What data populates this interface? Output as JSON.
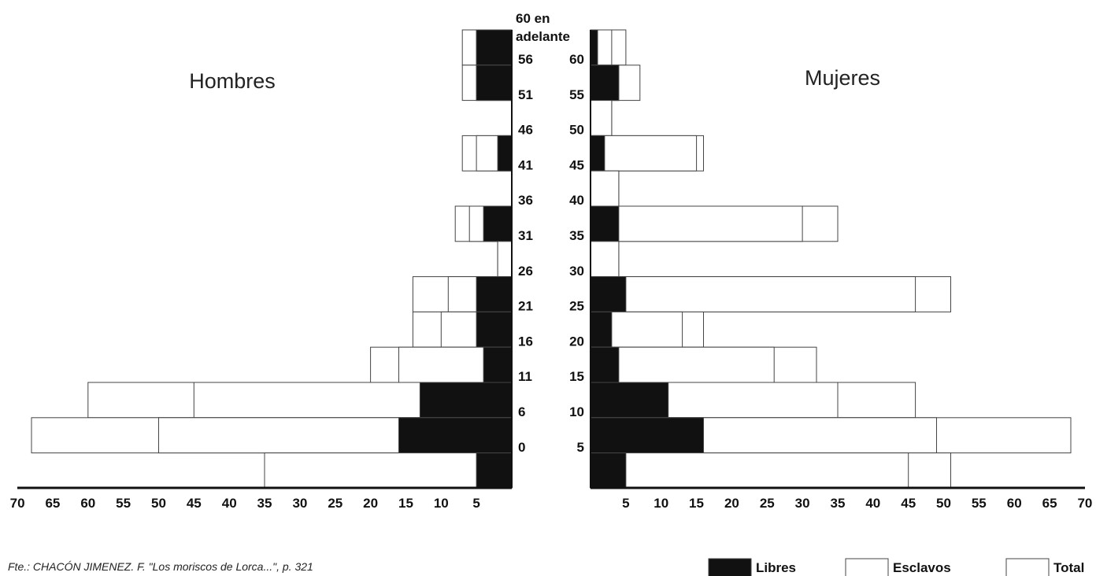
{
  "chart_data": {
    "type": "bar",
    "subtype": "population-pyramid",
    "colors": {
      "libres": "#111111",
      "esclavos": "#ffffff",
      "total": "#ffffff",
      "outline": "#444444"
    },
    "left_panel": {
      "title": "Hombres",
      "age_labels": [
        "60 en adelante",
        "56",
        "51",
        "46",
        "41",
        "36",
        "31",
        "26",
        "21",
        "16",
        "11",
        "6",
        "0"
      ],
      "rows": [
        {
          "libres": 5,
          "esclavos": 5,
          "total": 7
        },
        {
          "libres": 5,
          "esclavos": 5,
          "total": 7
        },
        {
          "libres": 0,
          "esclavos": 0,
          "total": 0
        },
        {
          "libres": 2,
          "esclavos": 5,
          "total": 7
        },
        {
          "libres": 0,
          "esclavos": 0,
          "total": 0
        },
        {
          "libres": 4,
          "esclavos": 6,
          "total": 8
        },
        {
          "libres": 0,
          "esclavos": 2,
          "total": 2
        },
        {
          "libres": 5,
          "esclavos": 9,
          "total": 14
        },
        {
          "libres": 5,
          "esclavos": 10,
          "total": 14
        },
        {
          "libres": 4,
          "esclavos": 16,
          "total": 20
        },
        {
          "libres": 13,
          "esclavos": 45,
          "total": 60
        },
        {
          "libres": 16,
          "esclavos": 50,
          "total": 68
        },
        {
          "libres": 5,
          "esclavos": 35,
          "total": 35
        }
      ],
      "xticks": [
        "70",
        "65",
        "60",
        "55",
        "50",
        "45",
        "40",
        "35",
        "30",
        "25",
        "20",
        "15",
        "10",
        "5"
      ]
    },
    "right_panel": {
      "title": "Mujeres",
      "age_labels": [
        "60",
        "55",
        "50",
        "45",
        "40",
        "35",
        "30",
        "25",
        "20",
        "15",
        "10",
        "5"
      ],
      "rows": [
        {
          "libres": 1,
          "esclavos": 3,
          "total": 5
        },
        {
          "libres": 4,
          "esclavos": 4,
          "total": 7
        },
        {
          "libres": 0,
          "esclavos": 3,
          "total": 3
        },
        {
          "libres": 2,
          "esclavos": 15,
          "total": 16
        },
        {
          "libres": 0,
          "esclavos": 4,
          "total": 4
        },
        {
          "libres": 4,
          "esclavos": 30,
          "total": 35
        },
        {
          "libres": 0,
          "esclavos": 4,
          "total": 4
        },
        {
          "libres": 5,
          "esclavos": 46,
          "total": 51
        },
        {
          "libres": 3,
          "esclavos": 13,
          "total": 16
        },
        {
          "libres": 4,
          "esclavos": 26,
          "total": 32
        },
        {
          "libres": 11,
          "esclavos": 35,
          "total": 46
        },
        {
          "libres": 16,
          "esclavos": 49,
          "total": 68
        },
        {
          "libres": 5,
          "esclavos": 45,
          "total": 51
        }
      ],
      "xticks": [
        "5",
        "10",
        "15",
        "20",
        "25",
        "30",
        "35",
        "40",
        "45",
        "50",
        "55",
        "60",
        "65",
        "70"
      ]
    },
    "legend": [
      "Libres",
      "Esclavos",
      "Total"
    ],
    "source": "Fte.: CHACÓN JIMENEZ. F. \"Los moriscos de Lorca...\", p. 321"
  }
}
